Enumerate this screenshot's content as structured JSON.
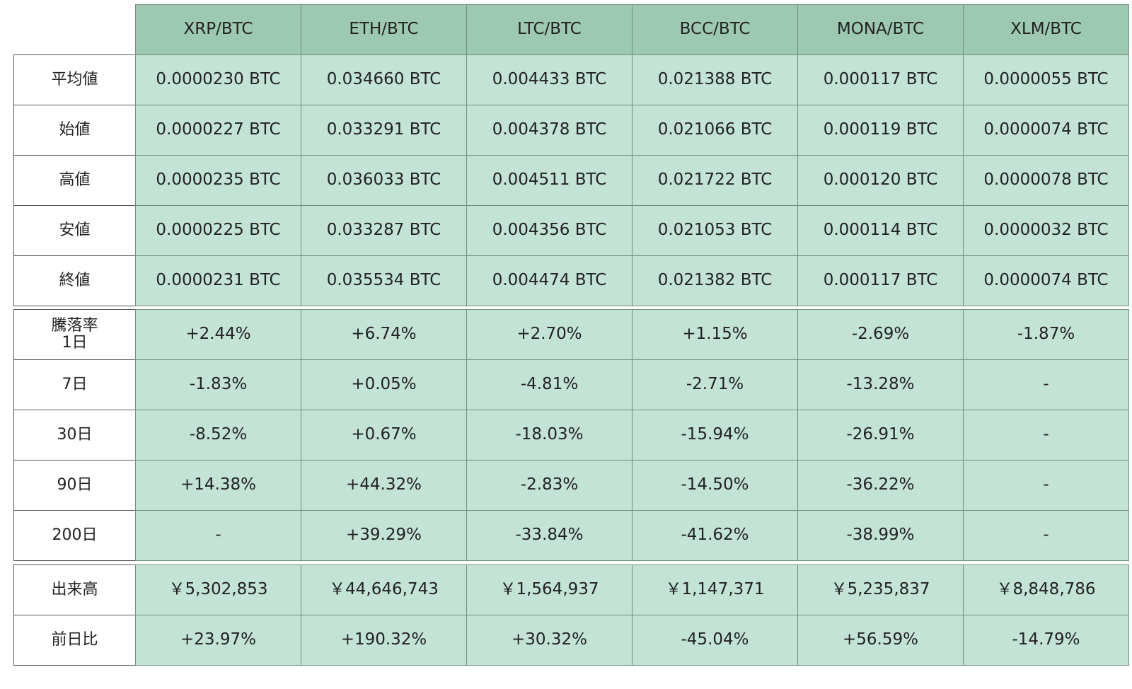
{
  "table": {
    "columns": [
      "XRP/BTC",
      "ETH/BTC",
      "LTC/BTC",
      "BCC/BTC",
      "MONA/BTC",
      "XLM/BTC"
    ],
    "sections": [
      {
        "rows": [
          {
            "label": "平均値",
            "cells": [
              "0.0000230 BTC",
              "0.034660 BTC",
              "0.004433 BTC",
              "0.021388 BTC",
              "0.000117 BTC",
              "0.0000055 BTC"
            ]
          },
          {
            "label": "始値",
            "cells": [
              "0.0000227 BTC",
              "0.033291 BTC",
              "0.004378 BTC",
              "0.021066 BTC",
              "0.000119 BTC",
              "0.0000074 BTC"
            ]
          },
          {
            "label": "高値",
            "cells": [
              "0.0000235 BTC",
              "0.036033 BTC",
              "0.004511 BTC",
              "0.021722 BTC",
              "0.000120 BTC",
              "0.0000078 BTC"
            ]
          },
          {
            "label": "安値",
            "cells": [
              "0.0000225 BTC",
              "0.033287 BTC",
              "0.004356 BTC",
              "0.021053 BTC",
              "0.000114 BTC",
              "0.0000032 BTC"
            ]
          },
          {
            "label": "終値",
            "cells": [
              "0.0000231 BTC",
              "0.035534 BTC",
              "0.004474 BTC",
              "0.021382 BTC",
              "0.000117 BTC",
              "0.0000074 BTC"
            ]
          }
        ]
      },
      {
        "rows": [
          {
            "label": "騰落率\n1日",
            "cells": [
              "+2.44%",
              "+6.74%",
              "+2.70%",
              "+1.15%",
              "-2.69%",
              "-1.87%"
            ]
          },
          {
            "label": "7日",
            "cells": [
              "-1.83%",
              "+0.05%",
              "-4.81%",
              "-2.71%",
              "-13.28%",
              "-"
            ]
          },
          {
            "label": "30日",
            "cells": [
              "-8.52%",
              "+0.67%",
              "-18.03%",
              "-15.94%",
              "-26.91%",
              "-"
            ]
          },
          {
            "label": "90日",
            "cells": [
              "+14.38%",
              "+44.32%",
              "-2.83%",
              "-14.50%",
              "-36.22%",
              "-"
            ]
          },
          {
            "label": "200日",
            "cells": [
              "-",
              "+39.29%",
              "-33.84%",
              "-41.62%",
              "-38.99%",
              "-"
            ]
          }
        ]
      },
      {
        "rows": [
          {
            "label": "出来高",
            "cells": [
              "￥5,302,853",
              "￥44,646,743",
              "￥1,564,937",
              "￥1,147,371",
              "￥5,235,837",
              "￥8,848,786"
            ]
          },
          {
            "label": "前日比",
            "cells": [
              "+23.97%",
              "+190.32%",
              "+30.32%",
              "-45.04%",
              "+56.59%",
              "-14.79%"
            ]
          }
        ]
      }
    ]
  }
}
